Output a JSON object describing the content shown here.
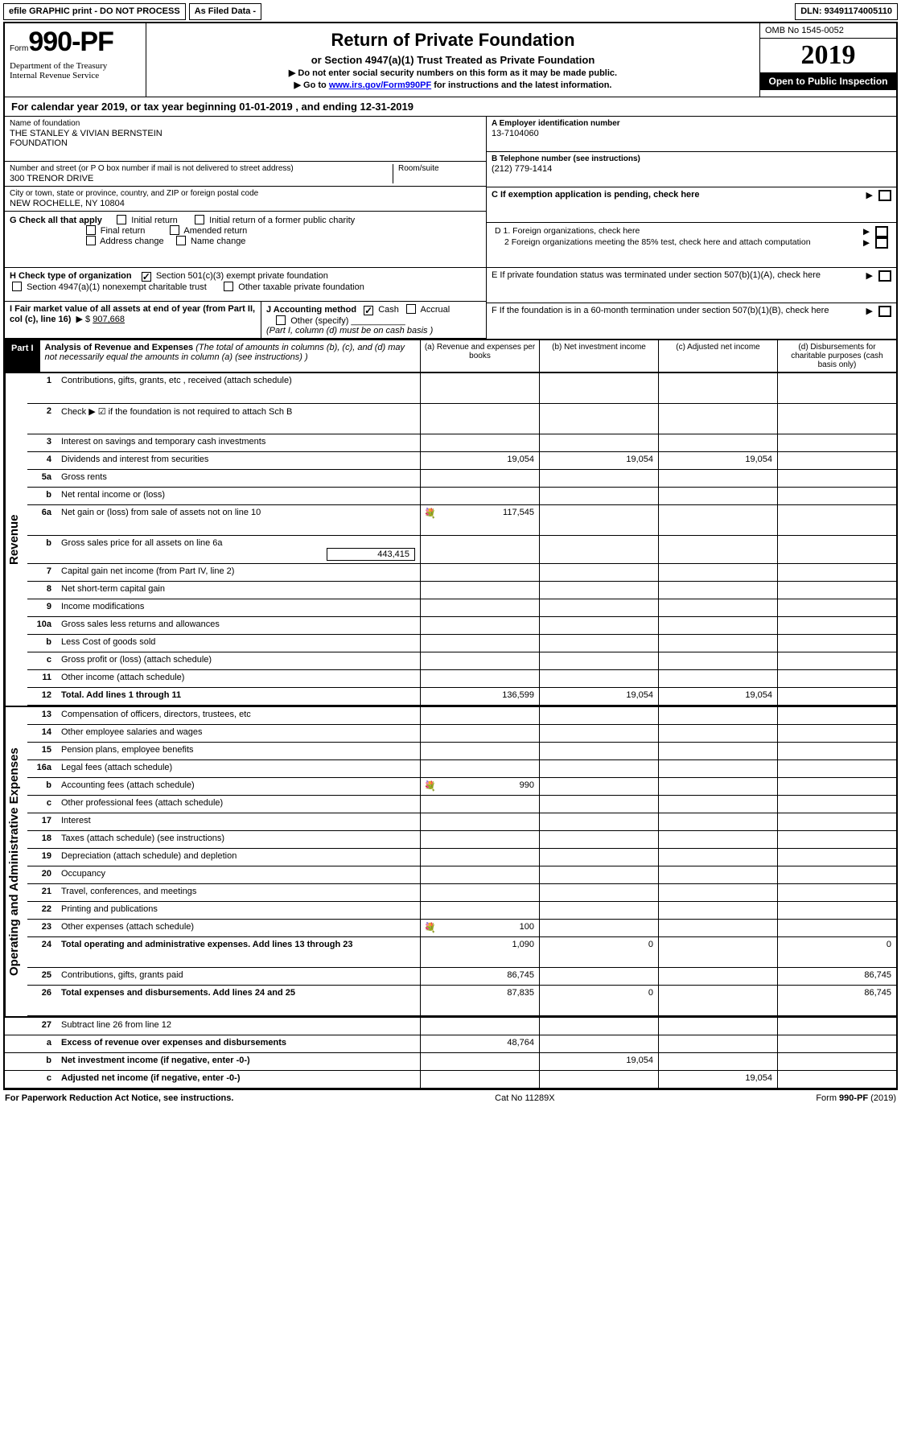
{
  "topbar": {
    "efile": "efile GRAPHIC print - DO NOT PROCESS",
    "asfiled": "As Filed Data -",
    "dln_lbl": "DLN:",
    "dln": "93491174005110"
  },
  "hdr": {
    "form": "Form",
    "formno": "990-PF",
    "dept": "Department of the Treasury\nInternal Revenue Service",
    "title": "Return of Private Foundation",
    "subtitle": "or Section 4947(a)(1) Trust Treated as Private Foundation",
    "note1": "▶ Do not enter social security numbers on this form as it may be made public.",
    "note2_pre": "▶ Go to ",
    "note2_link": "www.irs.gov/Form990PF",
    "note2_post": " for instructions and the latest information.",
    "omb": "OMB No 1545-0052",
    "year": "2019",
    "open": "Open to Public Inspection"
  },
  "cal": "For calendar year 2019, or tax year beginning 01-01-2019          , and ending 12-31-2019",
  "name": {
    "lbl": "Name of foundation",
    "val": "THE STANLEY & VIVIAN BERNSTEIN\nFOUNDATION"
  },
  "street": {
    "lbl": "Number and street (or P O  box number if mail is not delivered to street address)",
    "room": "Room/suite",
    "val": "300 TRENOR DRIVE"
  },
  "city": {
    "lbl": "City or town, state or province, country, and ZIP or foreign postal code",
    "val": "NEW ROCHELLE, NY  10804"
  },
  "A": {
    "lbl": "A Employer identification number",
    "val": "13-7104060"
  },
  "B": {
    "lbl": "B Telephone number (see instructions)",
    "val": "(212) 779-1414"
  },
  "C": "C If exemption application is pending, check here",
  "D": {
    "d1": "D 1. Foreign organizations, check here",
    "d2": "2 Foreign organizations meeting the 85% test, check here and attach computation"
  },
  "E": "E  If private foundation status was terminated under section 507(b)(1)(A), check here",
  "F": "F  If the foundation is in a 60-month termination under section 507(b)(1)(B), check here",
  "G": {
    "lbl": "G Check all that apply",
    "opts": [
      "Initial return",
      "Initial return of a former public charity",
      "Final return",
      "Amended return",
      "Address change",
      "Name change"
    ]
  },
  "H": {
    "lbl": "H Check type of organization",
    "opts": [
      "Section 501(c)(3) exempt private foundation",
      "Section 4947(a)(1) nonexempt charitable trust",
      "Other taxable private foundation"
    ],
    "checked": 0
  },
  "I": {
    "lbl": "I Fair market value of all assets at end of year (from Part II, col  (c), line 16)",
    "val": "907,668"
  },
  "J": {
    "lbl": "J Accounting method",
    "cash": "Cash",
    "accrual": "Accrual",
    "other": "Other (specify)",
    "note": "(Part I, column (d) must be on cash basis )"
  },
  "part1": {
    "tag": "Part I",
    "title": "Analysis of Revenue and Expenses",
    "sub": "(The total of amounts in columns (b), (c), and (d) may not necessarily equal the amounts in column (a) (see instructions) )",
    "cols": {
      "a": "(a)   Revenue and expenses per books",
      "b": "(b)   Net investment income",
      "c": "(c)   Adjusted net income",
      "d": "(d)   Disbursements for charitable purposes (cash basis only)"
    }
  },
  "side": {
    "rev": "Revenue",
    "exp": "Operating and Administrative Expenses"
  },
  "rows": {
    "r1": {
      "n": "1",
      "d": "Contributions, gifts, grants, etc , received (attach schedule)"
    },
    "r2": {
      "n": "2",
      "d": "Check ▶ ☑ if the foundation is not required to attach Sch  B"
    },
    "r3": {
      "n": "3",
      "d": "Interest on savings and temporary cash investments"
    },
    "r4": {
      "n": "4",
      "d": "Dividends and interest from securities",
      "a": "19,054",
      "b": "19,054",
      "c": "19,054"
    },
    "r5a": {
      "n": "5a",
      "d": "Gross rents"
    },
    "r5b": {
      "n": "b",
      "d": "Net rental income or (loss)"
    },
    "r6a": {
      "n": "6a",
      "d": "Net gain or (loss) from sale of assets not on line 10",
      "a": "117,545",
      "aicn": "💐"
    },
    "r6b": {
      "n": "b",
      "d": "Gross sales price for all assets on line 6a",
      "sub": "443,415"
    },
    "r7": {
      "n": "7",
      "d": "Capital gain net income (from Part IV, line 2)"
    },
    "r8": {
      "n": "8",
      "d": "Net short-term capital gain"
    },
    "r9": {
      "n": "9",
      "d": "Income modifications"
    },
    "r10a": {
      "n": "10a",
      "d": "Gross sales less returns and allowances"
    },
    "r10b": {
      "n": "b",
      "d": "Less  Cost of goods sold"
    },
    "r10c": {
      "n": "c",
      "d": "Gross profit or (loss) (attach schedule)"
    },
    "r11": {
      "n": "11",
      "d": "Other income (attach schedule)"
    },
    "r12": {
      "n": "12",
      "d": "Total. Add lines 1 through 11",
      "a": "136,599",
      "b": "19,054",
      "c": "19,054"
    },
    "r13": {
      "n": "13",
      "d": "Compensation of officers, directors, trustees, etc"
    },
    "r14": {
      "n": "14",
      "d": "Other employee salaries and wages"
    },
    "r15": {
      "n": "15",
      "d": "Pension plans, employee benefits"
    },
    "r16a": {
      "n": "16a",
      "d": "Legal fees (attach schedule)"
    },
    "r16b": {
      "n": "b",
      "d": "Accounting fees (attach schedule)",
      "a": "990",
      "aicn": "💐"
    },
    "r16c": {
      "n": "c",
      "d": "Other professional fees (attach schedule)"
    },
    "r17": {
      "n": "17",
      "d": "Interest"
    },
    "r18": {
      "n": "18",
      "d": "Taxes (attach schedule) (see instructions)"
    },
    "r19": {
      "n": "19",
      "d": "Depreciation (attach schedule) and depletion"
    },
    "r20": {
      "n": "20",
      "d": "Occupancy"
    },
    "r21": {
      "n": "21",
      "d": "Travel, conferences, and meetings"
    },
    "r22": {
      "n": "22",
      "d": "Printing and publications"
    },
    "r23": {
      "n": "23",
      "d": "Other expenses (attach schedule)",
      "a": "100",
      "aicn": "💐"
    },
    "r24": {
      "n": "24",
      "d": "Total operating and administrative expenses. Add lines 13 through 23",
      "a": "1,090",
      "b": "0",
      "dd": "0"
    },
    "r25": {
      "n": "25",
      "d": "Contributions, gifts, grants paid",
      "a": "86,745",
      "dd": "86,745"
    },
    "r26": {
      "n": "26",
      "d": "Total expenses and disbursements. Add lines 24 and 25",
      "a": "87,835",
      "b": "0",
      "dd": "86,745"
    },
    "r27": {
      "n": "27",
      "d": "Subtract line 26 from line 12"
    },
    "r27a": {
      "n": "a",
      "d": "Excess of revenue over expenses and disbursements",
      "a": "48,764"
    },
    "r27b": {
      "n": "b",
      "d": "Net investment income (if negative, enter -0-)",
      "b": "19,054"
    },
    "r27c": {
      "n": "c",
      "d": "Adjusted net income (if negative, enter -0-)",
      "c": "19,054"
    }
  },
  "footer": {
    "left": "For Paperwork Reduction Act Notice, see instructions.",
    "mid": "Cat  No  11289X",
    "right": "Form 990-PF (2019)"
  }
}
